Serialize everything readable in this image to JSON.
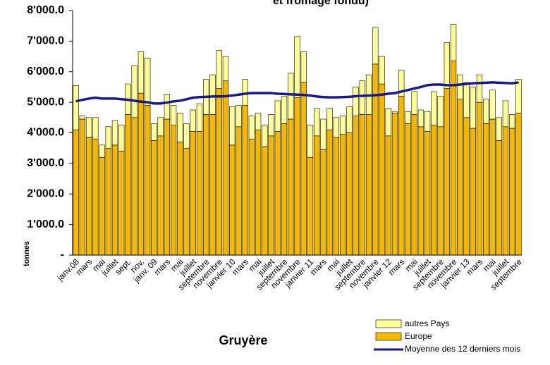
{
  "chart_data": {
    "type": "bar",
    "stacked": true,
    "title": "et fromage fondu)",
    "subtitle": "Gruyère",
    "y_label": "tonnes",
    "categories": [
      "janv.08",
      null,
      "mars",
      null,
      "mai",
      null,
      "juillet",
      null,
      "sept.",
      null,
      "nov.",
      null,
      "janv. 09",
      null,
      "mars",
      null,
      "mai",
      null,
      "juillet",
      null,
      "septembre",
      null,
      "novembre",
      null,
      "janvier 10",
      null,
      "mars",
      null,
      "mai",
      null,
      "juillet",
      null,
      "septembre",
      null,
      "novembre",
      null,
      "janvier 11",
      null,
      "mars",
      null,
      "mai",
      null,
      "juillet",
      null,
      "septembre",
      null,
      "novembre",
      null,
      "janvier 12",
      null,
      "mars",
      null,
      "mai",
      null,
      "juillet",
      null,
      "septembre",
      null,
      "novembre",
      null,
      "janvier 13",
      null,
      "mars",
      null,
      "mai",
      null,
      "juillet",
      null,
      "septembre"
    ],
    "series": [
      {
        "name": "Europe",
        "color": "#f5b800",
        "values": [
          4100,
          4450,
          3850,
          3800,
          3200,
          3500,
          3600,
          3400,
          4600,
          4500,
          5300,
          4900,
          3750,
          3900,
          4450,
          4250,
          3700,
          3500,
          4050,
          4050,
          4600,
          4600,
          5450,
          5700,
          3600,
          4200,
          4900,
          3800,
          4100,
          3550,
          3900,
          4050,
          4300,
          4450,
          5150,
          5650,
          3200,
          3900,
          3450,
          4100,
          3850,
          3950,
          4000,
          4550,
          4600,
          4600,
          6250,
          5600,
          3900,
          4650,
          5200,
          4300,
          4600,
          4200,
          4050,
          4250,
          4200,
          5450,
          6350,
          5100,
          4500,
          4150,
          5000,
          4300,
          4450,
          3750,
          4200,
          4150,
          4650
        ]
      },
      {
        "name": "autres Pays",
        "color": "#ffff99",
        "values": [
          1450,
          100,
          650,
          700,
          400,
          700,
          800,
          850,
          1000,
          1700,
          1350,
          1550,
          550,
          600,
          800,
          650,
          950,
          800,
          700,
          900,
          1150,
          1300,
          1250,
          800,
          1250,
          700,
          850,
          750,
          550,
          700,
          700,
          1000,
          900,
          1500,
          2000,
          1000,
          1050,
          900,
          1000,
          700,
          650,
          600,
          850,
          950,
          1100,
          1300,
          1200,
          900,
          900,
          50,
          850,
          400,
          750,
          550,
          650,
          1100,
          1000,
          1500,
          1200,
          800,
          1150,
          1350,
          900,
          800,
          950,
          750,
          850,
          450,
          1100
        ]
      },
      {
        "name": "Moyenne des 12 derniers mois",
        "type": "line",
        "color": "#1a1a80",
        "values": [
          5030,
          5080,
          5120,
          5150,
          5120,
          5120,
          5120,
          5100,
          5080,
          5050,
          5020,
          5000,
          4960,
          4960,
          4990,
          5030,
          5050,
          5100,
          5150,
          5170,
          5180,
          5190,
          5190,
          5200,
          5220,
          5250,
          5280,
          5300,
          5300,
          5300,
          5300,
          5280,
          5270,
          5260,
          5250,
          5240,
          5220,
          5190,
          5170,
          5160,
          5160,
          5170,
          5180,
          5200,
          5210,
          5220,
          5230,
          5250,
          5280,
          5300,
          5350,
          5400,
          5450,
          5500,
          5560,
          5580,
          5580,
          5560,
          5560,
          5580,
          5600,
          5620,
          5630,
          5640,
          5650,
          5640,
          5630,
          5620,
          5650
        ]
      }
    ],
    "ylim": [
      0,
      8000
    ],
    "yticks": [
      {
        "value": 0,
        "label": "-"
      },
      {
        "value": 1000,
        "label": "1'000.0"
      },
      {
        "value": 2000,
        "label": "2'000.0"
      },
      {
        "value": 3000,
        "label": "3'000.0"
      },
      {
        "value": 4000,
        "label": "4'000.0"
      },
      {
        "value": 5000,
        "label": "5'000.0"
      },
      {
        "value": 6000,
        "label": "6'000.0"
      },
      {
        "value": 7000,
        "label": "7'000.0"
      },
      {
        "value": 8000,
        "label": "8'000.0"
      }
    ],
    "grid": false
  }
}
